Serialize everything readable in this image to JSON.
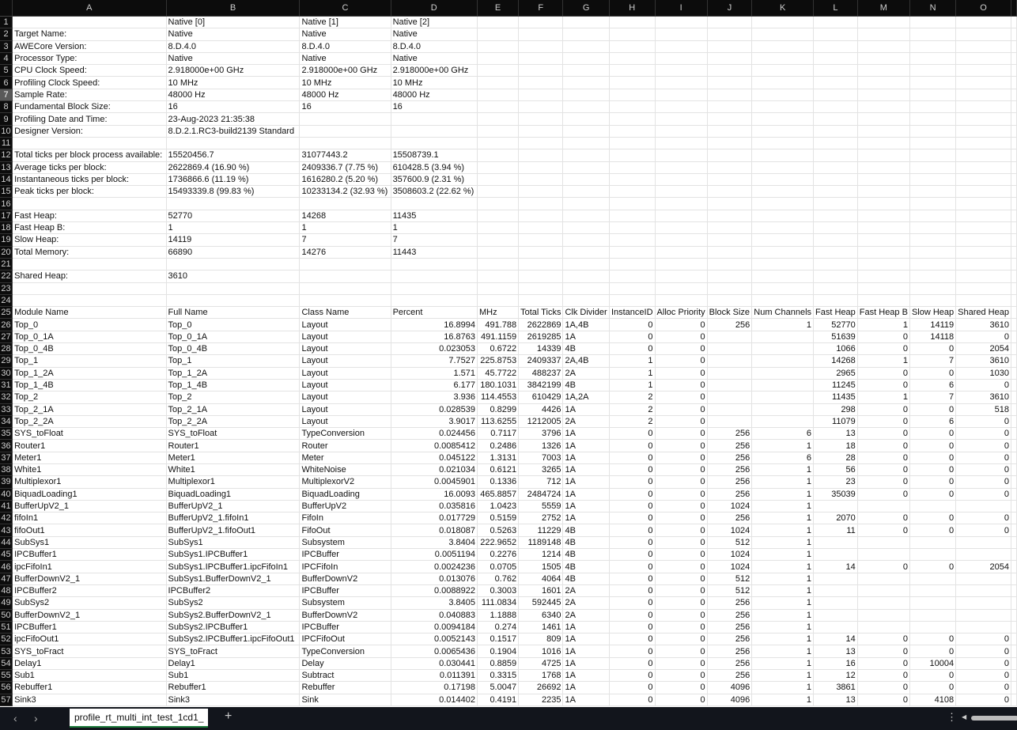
{
  "sheet": {
    "columns": [
      "A",
      "B",
      "C",
      "D",
      "E",
      "F",
      "G",
      "H",
      "I",
      "J",
      "K",
      "L",
      "M",
      "N",
      "O"
    ],
    "selected_row": 7,
    "rows": [
      [
        "",
        "Native [0]",
        "Native [1]",
        "Native [2]",
        "",
        "",
        "",
        "",
        "",
        "",
        "",
        "",
        "",
        "",
        ""
      ],
      [
        "Target Name:",
        "Native",
        "Native",
        "Native"
      ],
      [
        "AWECore Version:",
        "8.D.4.0",
        "8.D.4.0",
        "8.D.4.0"
      ],
      [
        "Processor Type:",
        "Native",
        "Native",
        "Native"
      ],
      [
        "CPU Clock Speed:",
        "2.918000e+00 GHz",
        "2.918000e+00 GHz",
        "2.918000e+00 GHz"
      ],
      [
        "Profiling Clock Speed:",
        "10 MHz",
        "10 MHz",
        "10 MHz"
      ],
      [
        "Sample Rate:",
        "48000 Hz",
        "48000 Hz",
        "48000 Hz"
      ],
      [
        "Fundamental Block Size:",
        "16",
        "16",
        "16"
      ],
      [
        "Profiling Date and Time:",
        "23-Aug-2023 21:35:38",
        "",
        ""
      ],
      [
        "Designer Version:",
        "8.D.2.1.RC3-build2139 Standard",
        "",
        ""
      ],
      [],
      [
        "Total ticks per block process available:",
        "15520456.7",
        "31077443.2",
        "15508739.1"
      ],
      [
        "Average ticks per block:",
        "2622869.4  (16.90 %)",
        "2409336.7  (7.75 %)",
        "610428.5  (3.94 %)"
      ],
      [
        "Instantaneous ticks per block:",
        "1736866.6  (11.19 %)",
        "1616280.2  (5.20 %)",
        "357600.9  (2.31 %)"
      ],
      [
        "Peak ticks per block:",
        "15493339.8  (99.83 %)",
        "10233134.2  (32.93 %)",
        "3508603.2  (22.62 %)"
      ],
      [],
      [
        "Fast Heap:",
        "52770",
        "14268",
        "11435"
      ],
      [
        "Fast Heap B:",
        "1",
        "1",
        "1"
      ],
      [
        "Slow Heap:",
        "14119",
        "7",
        "7"
      ],
      [
        "Total Memory:",
        "66890",
        "14276",
        "11443"
      ],
      [],
      [
        "Shared Heap:",
        "3610"
      ],
      [],
      [],
      [
        "Module Name",
        "Full Name",
        "Class Name",
        "Percent",
        "MHz",
        "Total Ticks",
        "Clk Divider",
        "InstanceID",
        "Alloc Priority",
        "Block Size",
        "Num Channels",
        "Fast Heap",
        "Fast Heap B",
        "Slow Heap",
        "Shared Heap"
      ],
      [
        "Top_0",
        "Top_0",
        "Layout",
        "16.8994",
        "491.788",
        "2622869",
        "1A,4B",
        "0",
        "0",
        "256",
        "1",
        "52770",
        "1",
        "14119",
        "3610"
      ],
      [
        "Top_0_1A",
        "Top_0_1A",
        "Layout",
        "16.8763",
        "491.1159",
        "2619285",
        "1A",
        "0",
        "0",
        "",
        "",
        "51639",
        "0",
        "14118",
        "0"
      ],
      [
        "Top_0_4B",
        "Top_0_4B",
        "Layout",
        "0.023053",
        "0.6722",
        "14339",
        "4B",
        "0",
        "0",
        "",
        "",
        "1066",
        "0",
        "0",
        "2054"
      ],
      [
        "Top_1",
        "Top_1",
        "Layout",
        "7.7527",
        "225.8753",
        "2409337",
        "2A,4B",
        "1",
        "0",
        "",
        "",
        "14268",
        "1",
        "7",
        "3610"
      ],
      [
        "Top_1_2A",
        "Top_1_2A",
        "Layout",
        "1.571",
        "45.7722",
        "488237",
        "2A",
        "1",
        "0",
        "",
        "",
        "2965",
        "0",
        "0",
        "1030"
      ],
      [
        "Top_1_4B",
        "Top_1_4B",
        "Layout",
        "6.177",
        "180.1031",
        "3842199",
        "4B",
        "1",
        "0",
        "",
        "",
        "11245",
        "0",
        "6",
        "0"
      ],
      [
        "Top_2",
        "Top_2",
        "Layout",
        "3.936",
        "114.4553",
        "610429",
        "1A,2A",
        "2",
        "0",
        "",
        "",
        "11435",
        "1",
        "7",
        "3610"
      ],
      [
        "Top_2_1A",
        "Top_2_1A",
        "Layout",
        "0.028539",
        "0.8299",
        "4426",
        "1A",
        "2",
        "0",
        "",
        "",
        "298",
        "0",
        "0",
        "518"
      ],
      [
        "Top_2_2A",
        "Top_2_2A",
        "Layout",
        "3.9017",
        "113.6255",
        "1212005",
        "2A",
        "2",
        "0",
        "",
        "",
        "11079",
        "0",
        "6",
        "0"
      ],
      [
        "SYS_toFloat",
        "SYS_toFloat",
        "TypeConversion",
        "0.024456",
        "0.7117",
        "3796",
        "1A",
        "0",
        "0",
        "256",
        "6",
        "13",
        "0",
        "0",
        "0"
      ],
      [
        "Router1",
        "Router1",
        "Router",
        "0.0085412",
        "0.2486",
        "1326",
        "1A",
        "0",
        "0",
        "256",
        "1",
        "18",
        "0",
        "0",
        "0"
      ],
      [
        "Meter1",
        "Meter1",
        "Meter",
        "0.045122",
        "1.3131",
        "7003",
        "1A",
        "0",
        "0",
        "256",
        "6",
        "28",
        "0",
        "0",
        "0"
      ],
      [
        "White1",
        "White1",
        "WhiteNoise",
        "0.021034",
        "0.6121",
        "3265",
        "1A",
        "0",
        "0",
        "256",
        "1",
        "56",
        "0",
        "0",
        "0"
      ],
      [
        "Multiplexor1",
        "Multiplexor1",
        "MultiplexorV2",
        "0.0045901",
        "0.1336",
        "712",
        "1A",
        "0",
        "0",
        "256",
        "1",
        "23",
        "0",
        "0",
        "0"
      ],
      [
        "BiquadLoading1",
        "BiquadLoading1",
        "BiquadLoading",
        "16.0093",
        "465.8857",
        "2484724",
        "1A",
        "0",
        "0",
        "256",
        "1",
        "35039",
        "0",
        "0",
        "0"
      ],
      [
        "BufferUpV2_1",
        "BufferUpV2_1",
        "BufferUpV2",
        "0.035816",
        "1.0423",
        "5559",
        "1A",
        "0",
        "0",
        "1024",
        "1",
        "",
        "",
        "",
        ""
      ],
      [
        "fifoIn1",
        "BufferUpV2_1.fifoIn1",
        "FifoIn",
        "0.017729",
        "0.5159",
        "2752",
        "1A",
        "0",
        "0",
        "256",
        "1",
        "2070",
        "0",
        "0",
        "0"
      ],
      [
        "fifoOut1",
        "BufferUpV2_1.fifoOut1",
        "FifoOut",
        "0.018087",
        "0.5263",
        "11229",
        "4B",
        "0",
        "0",
        "1024",
        "1",
        "11",
        "0",
        "0",
        "0"
      ],
      [
        "SubSys1",
        "SubSys1",
        "Subsystem",
        "3.8404",
        "222.9652",
        "1189148",
        "4B",
        "0",
        "0",
        "512",
        "1",
        "",
        "",
        "",
        ""
      ],
      [
        "IPCBuffer1",
        "SubSys1.IPCBuffer1",
        "IPCBuffer",
        "0.0051194",
        "0.2276",
        "1214",
        "4B",
        "0",
        "0",
        "1024",
        "1",
        "",
        "",
        "",
        ""
      ],
      [
        "ipcFifoIn1",
        "SubSys1.IPCBuffer1.ipcFifoIn1",
        "IPCFifoIn",
        "0.0024236",
        "0.0705",
        "1505",
        "4B",
        "0",
        "0",
        "1024",
        "1",
        "14",
        "0",
        "0",
        "2054"
      ],
      [
        "BufferDownV2_1",
        "SubSys1.BufferDownV2_1",
        "BufferDownV2",
        "0.013076",
        "0.762",
        "4064",
        "4B",
        "0",
        "0",
        "512",
        "1",
        "",
        "",
        "",
        ""
      ],
      [
        "IPCBuffer2",
        "IPCBuffer2",
        "IPCBuffer",
        "0.0088922",
        "0.3003",
        "1601",
        "2A",
        "0",
        "0",
        "512",
        "1",
        "",
        "",
        "",
        ""
      ],
      [
        "SubSys2",
        "SubSys2",
        "Subsystem",
        "3.8405",
        "111.0834",
        "592445",
        "2A",
        "0",
        "0",
        "256",
        "1",
        "",
        "",
        "",
        ""
      ],
      [
        "BufferDownV2_1",
        "SubSys2.BufferDownV2_1",
        "BufferDownV2",
        "0.040883",
        "1.1888",
        "6340",
        "2A",
        "0",
        "0",
        "256",
        "1",
        "",
        "",
        "",
        ""
      ],
      [
        "IPCBuffer1",
        "SubSys2.IPCBuffer1",
        "IPCBuffer",
        "0.0094184",
        "0.274",
        "1461",
        "1A",
        "0",
        "0",
        "256",
        "1",
        "",
        "",
        "",
        ""
      ],
      [
        "ipcFifoOut1",
        "SubSys2.IPCBuffer1.ipcFifoOut1",
        "IPCFifoOut",
        "0.0052143",
        "0.1517",
        "809",
        "1A",
        "0",
        "0",
        "256",
        "1",
        "14",
        "0",
        "0",
        "0"
      ],
      [
        "SYS_toFract",
        "SYS_toFract",
        "TypeConversion",
        "0.0065436",
        "0.1904",
        "1016",
        "1A",
        "0",
        "0",
        "256",
        "1",
        "13",
        "0",
        "0",
        "0"
      ],
      [
        "Delay1",
        "Delay1",
        "Delay",
        "0.030441",
        "0.8859",
        "4725",
        "1A",
        "0",
        "0",
        "256",
        "1",
        "16",
        "0",
        "10004",
        "0"
      ],
      [
        "Sub1",
        "Sub1",
        "Subtract",
        "0.011391",
        "0.3315",
        "1768",
        "1A",
        "0",
        "0",
        "256",
        "1",
        "12",
        "0",
        "0",
        "0"
      ],
      [
        "Rebuffer1",
        "Rebuffer1",
        "Rebuffer",
        "0.17198",
        "5.0047",
        "26692",
        "1A",
        "0",
        "0",
        "4096",
        "1",
        "3861",
        "0",
        "0",
        "0"
      ],
      [
        "Sink3",
        "Sink3",
        "Sink",
        "0.014402",
        "0.4191",
        "2235",
        "1A",
        "0",
        "0",
        "4096",
        "1",
        "13",
        "0",
        "4108",
        "0"
      ]
    ]
  },
  "tabbar": {
    "sheet_tab": "profile_rt_multi_int_test_1cd1_",
    "prev_icon": "chevron-left-icon",
    "next_icon": "chevron-right-icon",
    "add_label": "+",
    "accent": "#1e7b3c"
  }
}
